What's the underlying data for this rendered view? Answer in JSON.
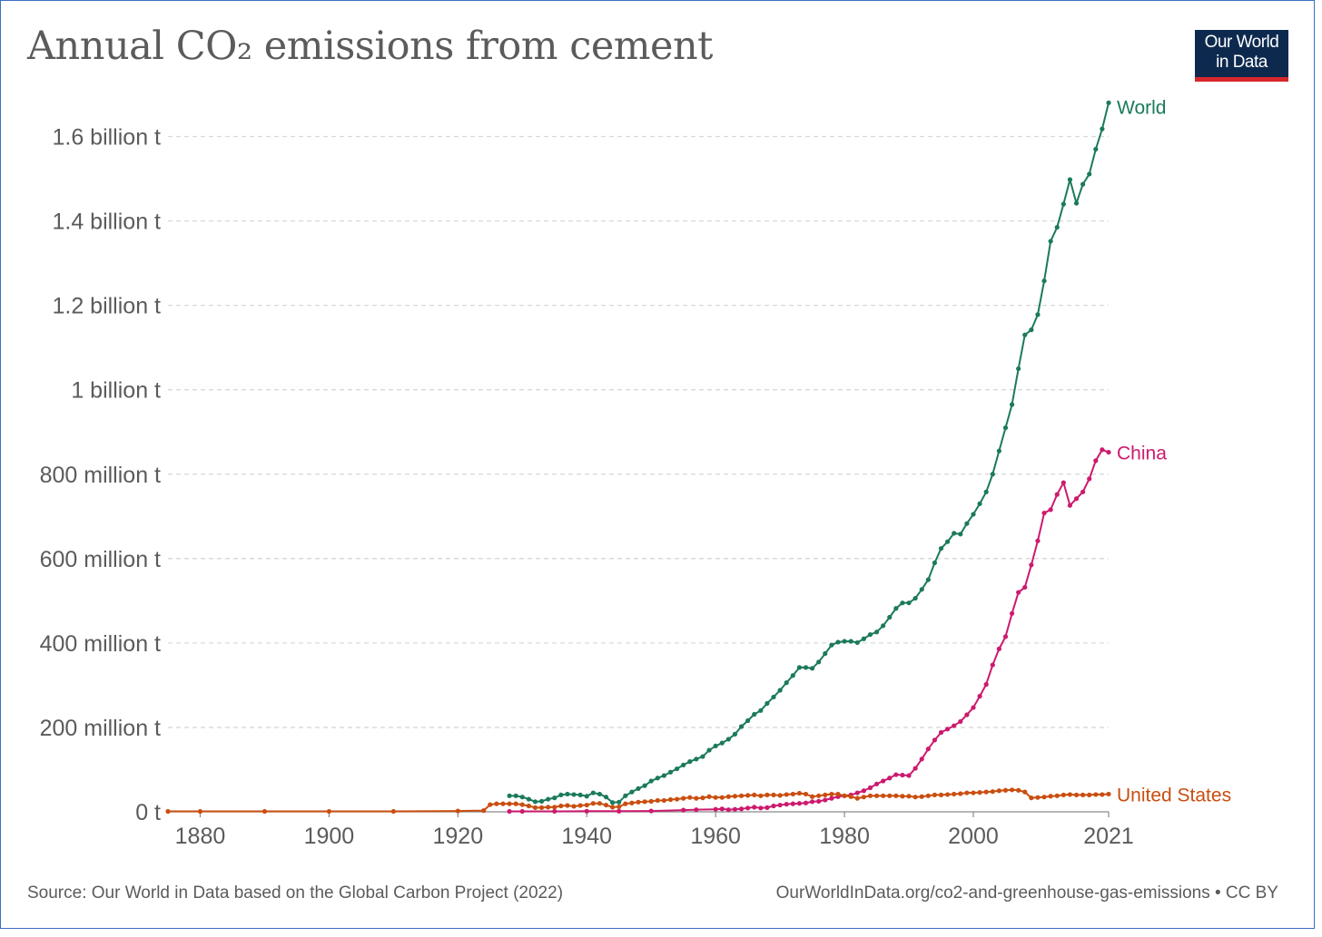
{
  "chart_data": {
    "type": "line",
    "title": "Annual CO₂ emissions from cement",
    "y_unit": "t",
    "ylim": [
      0,
      1700000000
    ],
    "xlim": [
      1875,
      2021
    ],
    "y_ticks": [
      {
        "value": 0,
        "label": "0 t"
      },
      {
        "value": 200000000,
        "label": "200 million t"
      },
      {
        "value": 400000000,
        "label": "400 million t"
      },
      {
        "value": 600000000,
        "label": "600 million t"
      },
      {
        "value": 800000000,
        "label": "800 million t"
      },
      {
        "value": 1000000000,
        "label": "1 billion t"
      },
      {
        "value": 1200000000,
        "label": "1.2 billion t"
      },
      {
        "value": 1400000000,
        "label": "1.4 billion t"
      },
      {
        "value": 1600000000,
        "label": "1.6 billion t"
      }
    ],
    "x_ticks": [
      {
        "value": 1880,
        "label": "1880"
      },
      {
        "value": 1900,
        "label": "1900"
      },
      {
        "value": 1920,
        "label": "1920"
      },
      {
        "value": 1940,
        "label": "1940"
      },
      {
        "value": 1960,
        "label": "1960"
      },
      {
        "value": 1980,
        "label": "1980"
      },
      {
        "value": 2000,
        "label": "2000"
      },
      {
        "value": 2021,
        "label": "2021"
      }
    ],
    "grid": "horizontal dashed",
    "legend": "inline labels at line ends",
    "series": [
      {
        "name": "World",
        "color": "#1b7a5a",
        "points": [
          [
            1928,
            38000000
          ],
          [
            1929,
            38000000
          ],
          [
            1930,
            35000000
          ],
          [
            1931,
            30000000
          ],
          [
            1932,
            24000000
          ],
          [
            1933,
            25000000
          ],
          [
            1934,
            30000000
          ],
          [
            1935,
            33000000
          ],
          [
            1936,
            40000000
          ],
          [
            1937,
            42000000
          ],
          [
            1938,
            41000000
          ],
          [
            1939,
            40000000
          ],
          [
            1940,
            37000000
          ],
          [
            1941,
            45000000
          ],
          [
            1942,
            42000000
          ],
          [
            1943,
            35000000
          ],
          [
            1944,
            22000000
          ],
          [
            1945,
            23000000
          ],
          [
            1946,
            38000000
          ],
          [
            1947,
            47000000
          ],
          [
            1948,
            55000000
          ],
          [
            1949,
            62000000
          ],
          [
            1950,
            73000000
          ],
          [
            1951,
            80000000
          ],
          [
            1952,
            86000000
          ],
          [
            1953,
            94000000
          ],
          [
            1954,
            102000000
          ],
          [
            1955,
            111000000
          ],
          [
            1956,
            119000000
          ],
          [
            1957,
            125000000
          ],
          [
            1958,
            131000000
          ],
          [
            1959,
            146000000
          ],
          [
            1960,
            156000000
          ],
          [
            1961,
            163000000
          ],
          [
            1962,
            172000000
          ],
          [
            1963,
            184000000
          ],
          [
            1964,
            202000000
          ],
          [
            1965,
            216000000
          ],
          [
            1966,
            231000000
          ],
          [
            1967,
            240000000
          ],
          [
            1968,
            257000000
          ],
          [
            1969,
            272000000
          ],
          [
            1970,
            288000000
          ],
          [
            1971,
            306000000
          ],
          [
            1972,
            323000000
          ],
          [
            1973,
            342000000
          ],
          [
            1974,
            342000000
          ],
          [
            1975,
            340000000
          ],
          [
            1976,
            355000000
          ],
          [
            1977,
            375000000
          ],
          [
            1978,
            395000000
          ],
          [
            1979,
            402000000
          ],
          [
            1980,
            404000000
          ],
          [
            1981,
            404000000
          ],
          [
            1982,
            401000000
          ],
          [
            1983,
            410000000
          ],
          [
            1984,
            420000000
          ],
          [
            1985,
            426000000
          ],
          [
            1986,
            441000000
          ],
          [
            1987,
            461000000
          ],
          [
            1988,
            482000000
          ],
          [
            1989,
            495000000
          ],
          [
            1990,
            495000000
          ],
          [
            1991,
            506000000
          ],
          [
            1992,
            527000000
          ],
          [
            1993,
            550000000
          ],
          [
            1994,
            590000000
          ],
          [
            1995,
            624000000
          ],
          [
            1996,
            640000000
          ],
          [
            1997,
            660000000
          ],
          [
            1998,
            658000000
          ],
          [
            1999,
            683000000
          ],
          [
            2000,
            705000000
          ],
          [
            2001,
            730000000
          ],
          [
            2002,
            758000000
          ],
          [
            2003,
            800000000
          ],
          [
            2004,
            855000000
          ],
          [
            2005,
            910000000
          ],
          [
            2006,
            965000000
          ],
          [
            2007,
            1050000000
          ],
          [
            2008,
            1130000000
          ],
          [
            2009,
            1142000000
          ],
          [
            2010,
            1178000000
          ],
          [
            2011,
            1258000000
          ],
          [
            2012,
            1352000000
          ],
          [
            2013,
            1385000000
          ],
          [
            2014,
            1440000000
          ],
          [
            2015,
            1498000000
          ],
          [
            2016,
            1442000000
          ],
          [
            2017,
            1487000000
          ],
          [
            2018,
            1511000000
          ],
          [
            2019,
            1570000000
          ],
          [
            2020,
            1618000000
          ],
          [
            2021,
            1680000000
          ]
        ]
      },
      {
        "name": "China",
        "color": "#cc1a6e",
        "points": [
          [
            1928,
            1000000
          ],
          [
            1930,
            1000000
          ],
          [
            1935,
            1200000
          ],
          [
            1940,
            1500000
          ],
          [
            1945,
            1500000
          ],
          [
            1950,
            2000000
          ],
          [
            1955,
            4000000
          ],
          [
            1957,
            5000000
          ],
          [
            1960,
            6000000
          ],
          [
            1961,
            7000000
          ],
          [
            1962,
            5000000
          ],
          [
            1963,
            6000000
          ],
          [
            1964,
            7000000
          ],
          [
            1965,
            9000000
          ],
          [
            1966,
            11000000
          ],
          [
            1967,
            9000000
          ],
          [
            1968,
            10000000
          ],
          [
            1969,
            14000000
          ],
          [
            1970,
            16000000
          ],
          [
            1971,
            18000000
          ],
          [
            1972,
            19000000
          ],
          [
            1973,
            20000000
          ],
          [
            1974,
            21000000
          ],
          [
            1975,
            24000000
          ],
          [
            1976,
            25000000
          ],
          [
            1977,
            28000000
          ],
          [
            1978,
            32000000
          ],
          [
            1979,
            36000000
          ],
          [
            1980,
            38000000
          ],
          [
            1981,
            40000000
          ],
          [
            1982,
            45000000
          ],
          [
            1983,
            50000000
          ],
          [
            1984,
            57000000
          ],
          [
            1985,
            66000000
          ],
          [
            1986,
            73000000
          ],
          [
            1987,
            80000000
          ],
          [
            1988,
            88000000
          ],
          [
            1989,
            87000000
          ],
          [
            1990,
            86000000
          ],
          [
            1991,
            103000000
          ],
          [
            1992,
            125000000
          ],
          [
            1993,
            149000000
          ],
          [
            1994,
            170000000
          ],
          [
            1995,
            188000000
          ],
          [
            1996,
            196000000
          ],
          [
            1997,
            204000000
          ],
          [
            1998,
            214000000
          ],
          [
            1999,
            230000000
          ],
          [
            2000,
            247000000
          ],
          [
            2001,
            274000000
          ],
          [
            2002,
            302000000
          ],
          [
            2003,
            348000000
          ],
          [
            2004,
            386000000
          ],
          [
            2005,
            415000000
          ],
          [
            2006,
            470000000
          ],
          [
            2007,
            520000000
          ],
          [
            2008,
            532000000
          ],
          [
            2009,
            585000000
          ],
          [
            2010,
            642000000
          ],
          [
            2011,
            708000000
          ],
          [
            2012,
            716000000
          ],
          [
            2013,
            752000000
          ],
          [
            2014,
            780000000
          ],
          [
            2015,
            726000000
          ],
          [
            2016,
            742000000
          ],
          [
            2017,
            758000000
          ],
          [
            2018,
            789000000
          ],
          [
            2019,
            832000000
          ],
          [
            2020,
            858000000
          ],
          [
            2021,
            852000000
          ]
        ]
      },
      {
        "name": "United States",
        "color": "#c94e10",
        "points": [
          [
            1875,
            1000000
          ],
          [
            1880,
            1000000
          ],
          [
            1890,
            1000000
          ],
          [
            1900,
            1000000
          ],
          [
            1910,
            1000000
          ],
          [
            1920,
            2000000
          ],
          [
            1924,
            3000000
          ],
          [
            1925,
            17000000
          ],
          [
            1926,
            19000000
          ],
          [
            1927,
            19000000
          ],
          [
            1928,
            19000000
          ],
          [
            1929,
            19000000
          ],
          [
            1930,
            17000000
          ],
          [
            1931,
            14000000
          ],
          [
            1932,
            10000000
          ],
          [
            1933,
            10000000
          ],
          [
            1934,
            11000000
          ],
          [
            1935,
            11000000
          ],
          [
            1936,
            14000000
          ],
          [
            1937,
            15000000
          ],
          [
            1938,
            13000000
          ],
          [
            1939,
            15000000
          ],
          [
            1940,
            16000000
          ],
          [
            1941,
            20000000
          ],
          [
            1942,
            20000000
          ],
          [
            1943,
            16000000
          ],
          [
            1944,
            11000000
          ],
          [
            1945,
            12000000
          ],
          [
            1946,
            19000000
          ],
          [
            1947,
            21000000
          ],
          [
            1948,
            23000000
          ],
          [
            1949,
            24000000
          ],
          [
            1950,
            25000000
          ],
          [
            1951,
            27000000
          ],
          [
            1952,
            27000000
          ],
          [
            1953,
            29000000
          ],
          [
            1954,
            30000000
          ],
          [
            1955,
            32000000
          ],
          [
            1956,
            34000000
          ],
          [
            1957,
            32000000
          ],
          [
            1958,
            33000000
          ],
          [
            1959,
            36000000
          ],
          [
            1960,
            34000000
          ],
          [
            1961,
            34000000
          ],
          [
            1962,
            36000000
          ],
          [
            1963,
            37000000
          ],
          [
            1964,
            38000000
          ],
          [
            1965,
            39000000
          ],
          [
            1966,
            40000000
          ],
          [
            1967,
            38000000
          ],
          [
            1968,
            40000000
          ],
          [
            1969,
            40000000
          ],
          [
            1970,
            39000000
          ],
          [
            1971,
            41000000
          ],
          [
            1972,
            42000000
          ],
          [
            1973,
            44000000
          ],
          [
            1974,
            42000000
          ],
          [
            1975,
            36000000
          ],
          [
            1976,
            38000000
          ],
          [
            1977,
            40000000
          ],
          [
            1978,
            42000000
          ],
          [
            1979,
            42000000
          ],
          [
            1980,
            38000000
          ],
          [
            1981,
            36000000
          ],
          [
            1982,
            32000000
          ],
          [
            1983,
            35000000
          ],
          [
            1984,
            38000000
          ],
          [
            1985,
            38000000
          ],
          [
            1986,
            38000000
          ],
          [
            1987,
            38000000
          ],
          [
            1988,
            38000000
          ],
          [
            1989,
            37000000
          ],
          [
            1990,
            37000000
          ],
          [
            1991,
            35000000
          ],
          [
            1992,
            36000000
          ],
          [
            1993,
            38000000
          ],
          [
            1994,
            40000000
          ],
          [
            1995,
            40000000
          ],
          [
            1996,
            41000000
          ],
          [
            1997,
            42000000
          ],
          [
            1998,
            43000000
          ],
          [
            1999,
            45000000
          ],
          [
            2000,
            45000000
          ],
          [
            2001,
            46000000
          ],
          [
            2002,
            47000000
          ],
          [
            2003,
            48000000
          ],
          [
            2004,
            50000000
          ],
          [
            2005,
            51000000
          ],
          [
            2006,
            52000000
          ],
          [
            2007,
            51000000
          ],
          [
            2008,
            47000000
          ],
          [
            2009,
            33000000
          ],
          [
            2010,
            34000000
          ],
          [
            2011,
            35000000
          ],
          [
            2012,
            37000000
          ],
          [
            2013,
            38000000
          ],
          [
            2014,
            40000000
          ],
          [
            2015,
            41000000
          ],
          [
            2016,
            40000000
          ],
          [
            2017,
            40000000
          ],
          [
            2018,
            40000000
          ],
          [
            2019,
            41000000
          ],
          [
            2020,
            41000000
          ],
          [
            2021,
            42000000
          ]
        ]
      }
    ]
  },
  "logo": {
    "line1": "Our World",
    "line2": "in Data",
    "color": "#0d2a4e",
    "accent": "#d6262c"
  },
  "footer": {
    "source": "Source: Our World in Data based on the Global Carbon Project (2022)",
    "url": "OurWorldInData.org/co2-and-greenhouse-gas-emissions • CC BY"
  }
}
